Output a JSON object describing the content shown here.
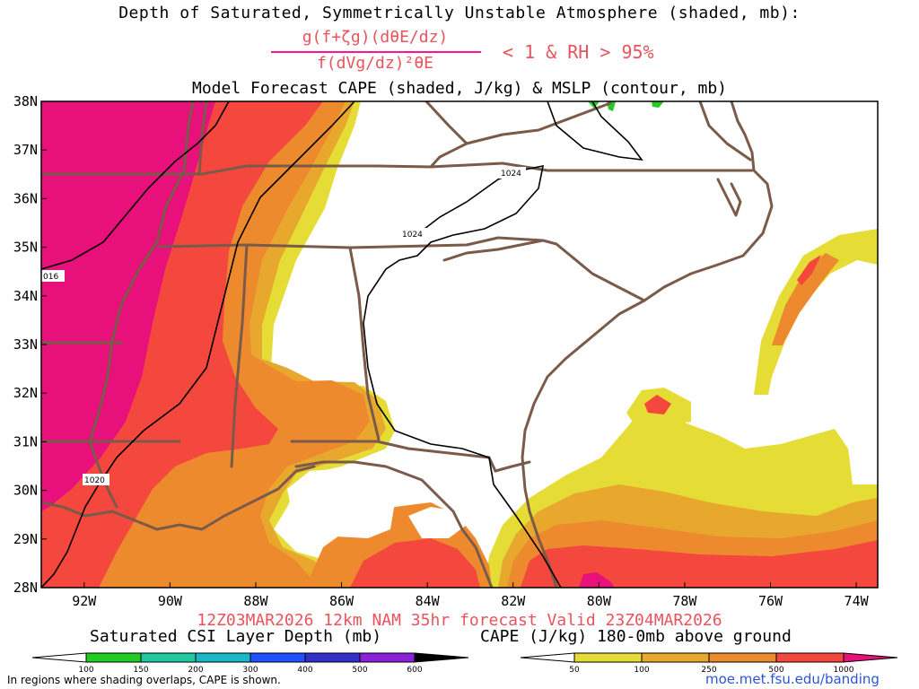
{
  "titles": {
    "line1": "Depth of Saturated, Symmetrically Unstable Atmosphere (shaded, mb):",
    "numerator": "g(f+ζg)(dθE/dz)",
    "denominator": "f(dVg/dz)²θE",
    "condition": "< 1 & RH > 95%",
    "line3": "Model Forecast CAPE (shaded, J/kg) & MSLP (contour, mb)",
    "valid": "12Z03MAR2026 12km NAM 35hr forecast Valid 23Z04MAR2026"
  },
  "map": {
    "lat_labels": [
      "38N",
      "37N",
      "36N",
      "35N",
      "34N",
      "33N",
      "32N",
      "31N",
      "30N",
      "29N",
      "28N"
    ],
    "lon_labels": [
      "92W",
      "90W",
      "88W",
      "86W",
      "84W",
      "82W",
      "80W",
      "78W",
      "76W",
      "74W"
    ],
    "extent": {
      "lon": [
        -93,
        -73.5
      ],
      "lat": [
        28,
        38
      ]
    },
    "isobar_labels": [
      "1024",
      "1024",
      "016",
      "1020"
    ]
  },
  "colorbars": {
    "csi": {
      "title": "Saturated CSI Layer Depth (mb)",
      "ticks": [
        "100",
        "150",
        "200",
        "300",
        "400",
        "500",
        "600"
      ],
      "colors": [
        "#ffffff",
        "#22cc22",
        "#20c8a0",
        "#18b8c8",
        "#2050ff",
        "#3030c8",
        "#8a20d8",
        "#000000"
      ]
    },
    "cape": {
      "title": "CAPE (J/kg) 180-0mb above ground",
      "ticks": [
        "50",
        "100",
        "250",
        "500",
        "1000"
      ],
      "colors": [
        "#ffffff",
        "#e6dc36",
        "#e8a82e",
        "#ee8a2e",
        "#f4483e",
        "#e8107a"
      ]
    }
  },
  "colors": {
    "cape_50": "#e6dc36",
    "cape_100": "#e8a82e",
    "cape_250": "#ee8a2e",
    "cape_500": "#f4483e",
    "cape_1000": "#e8107a",
    "csi": "#22cc22",
    "boundaries": "#7a5a48"
  },
  "footer": {
    "note": "In regions where shading overlaps, CAPE is shown.",
    "url": "moe.met.fsu.edu/banding"
  }
}
